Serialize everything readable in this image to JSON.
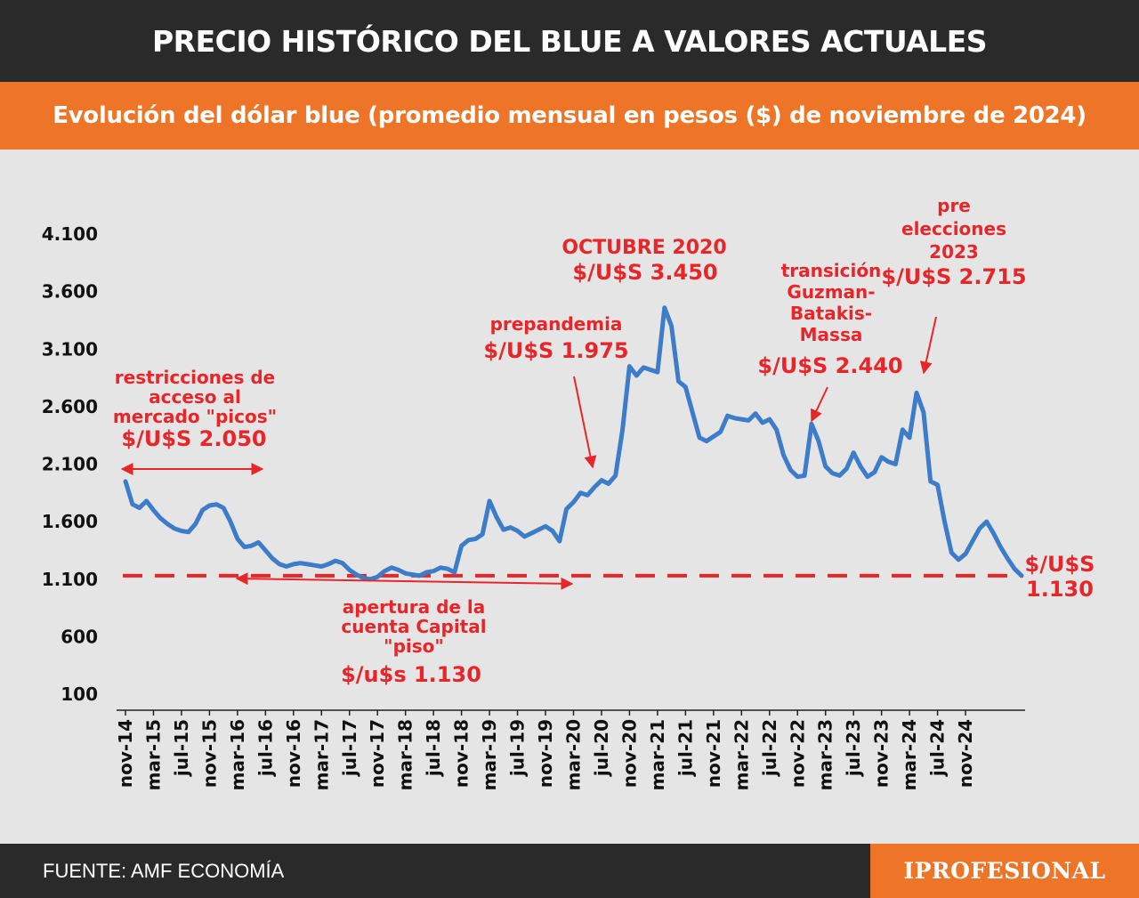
{
  "header": {
    "title": "PRECIO HISTÓRICO DEL BLUE A VALORES ACTUALES",
    "subtitle": "Evolución del dólar blue (promedio mensual en pesos ($) de noviembre de 2024)"
  },
  "footer": {
    "source": "FUENTE: AMF ECONOMÍA",
    "brand": "IPROFESIONAL"
  },
  "colors": {
    "title_bg": "#2a2a2a",
    "accent": "#ee7527",
    "line": "#3d7cc9",
    "annotation": "#e8262a",
    "background": "#e5e5e5"
  },
  "chart_data": {
    "type": "line",
    "title": "",
    "xlabel": "",
    "ylabel": "",
    "ylim": [
      100,
      4100
    ],
    "yticks": [
      4100,
      3600,
      3100,
      2600,
      2100,
      1600,
      1100,
      600,
      100
    ],
    "ytick_labels": [
      "4.100",
      "3.600",
      "3.100",
      "2.600",
      "2.100",
      "1.600",
      "1.100",
      "600",
      "100"
    ],
    "xtick_labels": [
      "nov-14",
      "mar-15",
      "jul-15",
      "nov-15",
      "mar-16",
      "jul-16",
      "nov-16",
      "mar-17",
      "jul-17",
      "nov-17",
      "mar-18",
      "jul-18",
      "nov-18",
      "mar-19",
      "jul-19",
      "nov-19",
      "mar-20",
      "jul-20",
      "nov-20",
      "mar-21",
      "jul-21",
      "nov-21",
      "mar-22",
      "jul-22",
      "nov-22",
      "mar-23",
      "jul-23",
      "nov-23",
      "mar-24",
      "jul-24",
      "nov-24"
    ],
    "grid": false,
    "floor_value": 1130,
    "series": [
      {
        "values": [
          1950,
          1750,
          1720,
          1780,
          1700,
          1630,
          1580,
          1540,
          1520,
          1510,
          1580,
          1700,
          1740,
          1750,
          1720,
          1600,
          1450,
          1380,
          1390,
          1420,
          1350,
          1280,
          1230,
          1210,
          1230,
          1240,
          1230,
          1220,
          1210,
          1230,
          1260,
          1240,
          1180,
          1140,
          1110,
          1100,
          1120,
          1170,
          1200,
          1180,
          1150,
          1140,
          1130,
          1160,
          1170,
          1200,
          1190,
          1160,
          1390,
          1440,
          1450,
          1490,
          1780,
          1640,
          1530,
          1550,
          1520,
          1470,
          1500,
          1530,
          1560,
          1520,
          1430,
          1710,
          1770,
          1850,
          1830,
          1900,
          1960,
          1930,
          2000,
          2400,
          2950,
          2870,
          2940,
          2920,
          2900,
          3460,
          3300,
          2820,
          2770,
          2550,
          2330,
          2300,
          2340,
          2380,
          2520,
          2500,
          2490,
          2480,
          2540,
          2460,
          2490,
          2400,
          2180,
          2050,
          1990,
          2000,
          2450,
          2300,
          2080,
          2020,
          2000,
          2060,
          2200,
          2080,
          1990,
          2030,
          2160,
          2120,
          2100,
          2400,
          2330,
          2720,
          2550,
          1950,
          1920,
          1600,
          1330,
          1270,
          1320,
          1430,
          1540,
          1600,
          1500,
          1380,
          1280,
          1190,
          1130
        ]
      }
    ],
    "annotations": [
      {
        "lines": [
          "restricciones de",
          "acceso al",
          "mercado \"picos\""
        ],
        "value_label": "$/U$S 2.050",
        "range_start": "nov-14",
        "range_end": "mar-16"
      },
      {
        "lines": [
          "apertura de la",
          "cuenta Capital",
          "\"piso\""
        ],
        "value_label": "$/u$s 1.130",
        "range_start": "mar-16",
        "range_end": "nov-19"
      },
      {
        "lines": [
          "prepandemia"
        ],
        "value_label": "$/U$S 1.975",
        "target": "dic-19"
      },
      {
        "lines": [
          "OCTUBRE 2020"
        ],
        "value_label": "$/U$S 3.450"
      },
      {
        "lines": [
          "transición",
          "Guzman-",
          "Batakis-",
          "Massa"
        ],
        "value_label": "$/U$S 2.440",
        "target": "jul-22"
      },
      {
        "lines": [
          "pre",
          "elecciones",
          "2023"
        ],
        "value_label": "$/U$S 2.715",
        "target": "ago-23"
      },
      {
        "lines": [
          "$/U$S",
          "1.130"
        ]
      }
    ]
  }
}
